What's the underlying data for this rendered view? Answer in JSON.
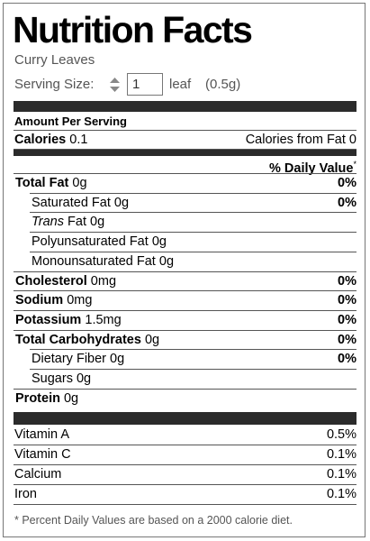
{
  "header": {
    "title": "Nutrition Facts",
    "food": "Curry Leaves",
    "serving_label": "Serving Size:",
    "serving_quantity": "1",
    "serving_unit": "leaf",
    "serving_weight": "(0.5g)"
  },
  "amount_per_serving": "Amount Per Serving",
  "calories": {
    "label": "Calories",
    "value": "0.1",
    "from_fat": "Calories from Fat 0"
  },
  "daily_value_header": "% Daily Value",
  "daily_value_mark": "*",
  "nutrients": [
    {
      "name": "Total Fat",
      "amount": "0g",
      "dv": "0%",
      "bold": true,
      "indent": false
    },
    {
      "name": "Saturated Fat",
      "amount": "0g",
      "dv": "0%",
      "bold": false,
      "indent": true
    },
    {
      "name_italic": "Trans",
      "name": "Fat",
      "amount": "0g",
      "bold": false,
      "indent": true
    },
    {
      "name": "Polyunsaturated Fat",
      "amount": "0g",
      "bold": false,
      "indent": true
    },
    {
      "name": "Monounsaturated Fat",
      "amount": "0g",
      "bold": false,
      "indent": true
    },
    {
      "name": "Cholesterol",
      "amount": "0mg",
      "dv": "0%",
      "bold": true,
      "indent": false
    },
    {
      "name": "Sodium",
      "amount": "0mg",
      "dv": "0%",
      "bold": true,
      "indent": false
    },
    {
      "name": "Potassium",
      "amount": "1.5mg",
      "dv": "0%",
      "bold": true,
      "indent": false
    },
    {
      "name": "Total Carbohydrates",
      "amount": "0g",
      "dv": "0%",
      "bold": true,
      "indent": false
    },
    {
      "name": "Dietary Fiber",
      "amount": "0g",
      "dv": "0%",
      "bold": false,
      "indent": true
    },
    {
      "name": "Sugars",
      "amount": "0g",
      "bold": false,
      "indent": true
    },
    {
      "name": "Protein",
      "amount": "0g",
      "bold": true,
      "indent": false
    }
  ],
  "vitamins": [
    {
      "name": "Vitamin A",
      "dv": "0.5%"
    },
    {
      "name": "Vitamin C",
      "dv": "0.1%"
    },
    {
      "name": "Calcium",
      "dv": "0.1%"
    },
    {
      "name": "Iron",
      "dv": "0.1%"
    }
  ],
  "footnote": "* Percent Daily Values are based on a 2000 calorie diet."
}
